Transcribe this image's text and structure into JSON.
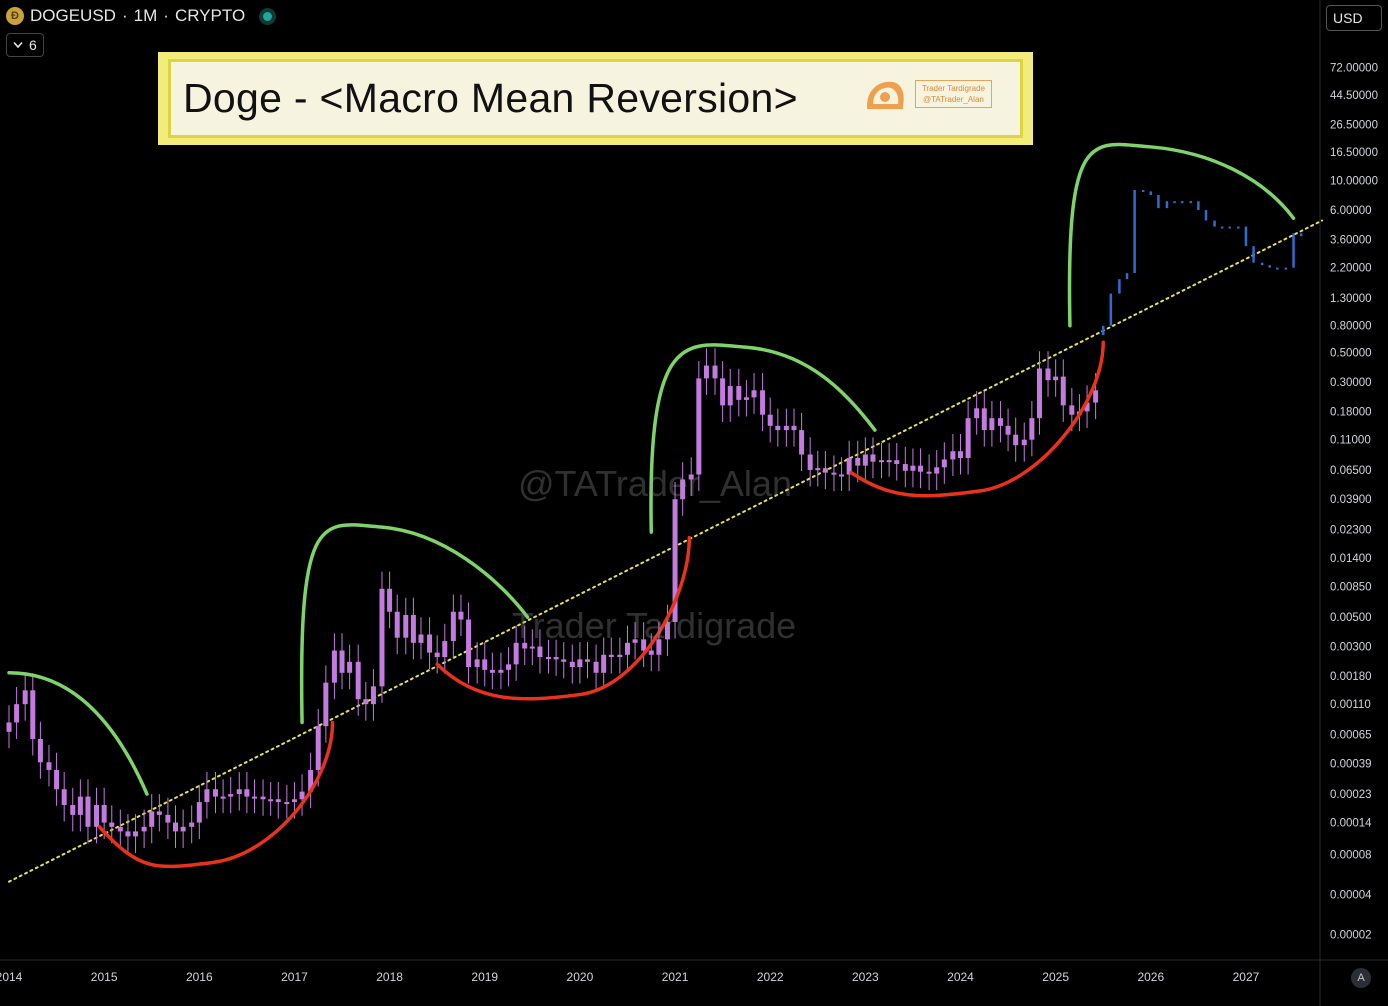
{
  "header": {
    "symbol": "DOGEUSD",
    "separator1": "·",
    "interval": "1M",
    "separator2": "·",
    "market": "CRYPTO",
    "indicator_count": "6"
  },
  "title": "Doge - <Macro Mean Reversion>",
  "logo": {
    "line1": "Trader Tardigrade",
    "line2": "@TATrader_Alan"
  },
  "watermarks": {
    "handle": "@TATrader_Alan",
    "brand": "Trader Tardigrade"
  },
  "currency_label": "USD",
  "auto_label": "A",
  "colors": {
    "candle": "#c47be0",
    "projection": "#2f6bd1",
    "green_arc": "#7fd36b",
    "red_arc": "#e8321e",
    "trend_line": "#e6e05a",
    "title_bg": "#f2ec7a"
  },
  "chart_data": {
    "type": "candlestick",
    "scale": "log",
    "y_ticks": [
      "72.00000",
      "44.50000",
      "26.50000",
      "16.50000",
      "10.00000",
      "6.00000",
      "3.60000",
      "2.20000",
      "1.30000",
      "0.80000",
      "0.50000",
      "0.30000",
      "0.18000",
      "0.11000",
      "0.06500",
      "0.03900",
      "0.02300",
      "0.01400",
      "0.00850",
      "0.00500",
      "0.00300",
      "0.00180",
      "0.00110",
      "0.00065",
      "0.00039",
      "0.00023",
      "0.00014",
      "0.00008",
      "0.00004",
      "0.00002"
    ],
    "x_ticks": [
      "2014",
      "2015",
      "2016",
      "2017",
      "2018",
      "2019",
      "2020",
      "2021",
      "2022",
      "2023",
      "2024",
      "2025",
      "2026",
      "2027"
    ],
    "xlim": [
      2014.0,
      2027.8
    ],
    "ylim": [
      1.6e-05,
      95
    ],
    "trend_line": {
      "from": [
        2014.0,
        5e-05
      ],
      "to": [
        2027.8,
        5.0
      ],
      "style": "dotted"
    },
    "series": [
      {
        "role": "historical",
        "color": "#c47be0",
        "close": [
          [
            2014.0,
            0.0008
          ],
          [
            2014.08,
            0.0011
          ],
          [
            2014.17,
            0.0014
          ],
          [
            2014.25,
            0.0006
          ],
          [
            2014.33,
            0.0004
          ],
          [
            2014.42,
            0.00035
          ],
          [
            2014.5,
            0.00025
          ],
          [
            2014.58,
            0.00019
          ],
          [
            2014.67,
            0.00016
          ],
          [
            2014.75,
            0.00022
          ],
          [
            2014.83,
            0.00013
          ],
          [
            2014.92,
            0.00019
          ],
          [
            2015.0,
            0.00014
          ],
          [
            2015.08,
            0.00013
          ],
          [
            2015.17,
            0.00012
          ],
          [
            2015.25,
            0.00011
          ],
          [
            2015.33,
            0.00012
          ],
          [
            2015.42,
            0.00013
          ],
          [
            2015.5,
            0.00017
          ],
          [
            2015.58,
            0.00016
          ],
          [
            2015.67,
            0.00014
          ],
          [
            2015.75,
            0.00012
          ],
          [
            2015.83,
            0.00013
          ],
          [
            2015.92,
            0.00014
          ],
          [
            2016.0,
            0.0002
          ],
          [
            2016.08,
            0.00025
          ],
          [
            2016.17,
            0.00022
          ],
          [
            2016.25,
            0.00022
          ],
          [
            2016.33,
            0.00023
          ],
          [
            2016.42,
            0.00025
          ],
          [
            2016.5,
            0.00022
          ],
          [
            2016.58,
            0.00022
          ],
          [
            2016.67,
            0.00021
          ],
          [
            2016.75,
            0.00021
          ],
          [
            2016.83,
            0.0002
          ],
          [
            2016.92,
            0.0002
          ],
          [
            2017.0,
            0.00021
          ],
          [
            2017.08,
            0.00024
          ],
          [
            2017.17,
            0.00035
          ],
          [
            2017.25,
            0.00075
          ],
          [
            2017.33,
            0.0016
          ],
          [
            2017.42,
            0.0028
          ],
          [
            2017.5,
            0.0019
          ],
          [
            2017.58,
            0.0023
          ],
          [
            2017.67,
            0.0012
          ],
          [
            2017.75,
            0.0011
          ],
          [
            2017.83,
            0.0015
          ],
          [
            2017.92,
            0.0082
          ],
          [
            2018.0,
            0.0055
          ],
          [
            2018.08,
            0.0035
          ],
          [
            2018.17,
            0.0052
          ],
          [
            2018.25,
            0.0032
          ],
          [
            2018.33,
            0.0037
          ],
          [
            2018.42,
            0.0027
          ],
          [
            2018.5,
            0.0025
          ],
          [
            2018.58,
            0.0033
          ],
          [
            2018.67,
            0.0055
          ],
          [
            2018.75,
            0.0048
          ],
          [
            2018.83,
            0.0021
          ],
          [
            2018.92,
            0.0024
          ],
          [
            2019.0,
            0.002
          ],
          [
            2019.08,
            0.0019
          ],
          [
            2019.17,
            0.002
          ],
          [
            2019.25,
            0.0022
          ],
          [
            2019.33,
            0.0032
          ],
          [
            2019.42,
            0.0029
          ],
          [
            2019.5,
            0.003
          ],
          [
            2019.58,
            0.0025
          ],
          [
            2019.67,
            0.0025
          ],
          [
            2019.75,
            0.0024
          ],
          [
            2019.83,
            0.0023
          ],
          [
            2019.92,
            0.0021
          ],
          [
            2020.0,
            0.0024
          ],
          [
            2020.08,
            0.0023
          ],
          [
            2020.17,
            0.0019
          ],
          [
            2020.25,
            0.0026
          ],
          [
            2020.33,
            0.0025
          ],
          [
            2020.42,
            0.0026
          ],
          [
            2020.5,
            0.0032
          ],
          [
            2020.58,
            0.0034
          ],
          [
            2020.67,
            0.0028
          ],
          [
            2020.75,
            0.0026
          ],
          [
            2020.83,
            0.0034
          ],
          [
            2020.92,
            0.0046
          ],
          [
            2021.0,
            0.039
          ],
          [
            2021.08,
            0.055
          ],
          [
            2021.17,
            0.06
          ],
          [
            2021.25,
            0.32
          ],
          [
            2021.33,
            0.4
          ],
          [
            2021.42,
            0.32
          ],
          [
            2021.5,
            0.2
          ],
          [
            2021.58,
            0.28
          ],
          [
            2021.67,
            0.22
          ],
          [
            2021.75,
            0.23
          ],
          [
            2021.83,
            0.26
          ],
          [
            2021.92,
            0.17
          ],
          [
            2022.0,
            0.14
          ],
          [
            2022.08,
            0.13
          ],
          [
            2022.17,
            0.14
          ],
          [
            2022.25,
            0.13
          ],
          [
            2022.33,
            0.085
          ],
          [
            2022.42,
            0.065
          ],
          [
            2022.5,
            0.067
          ],
          [
            2022.58,
            0.062
          ],
          [
            2022.67,
            0.06
          ],
          [
            2022.75,
            0.06
          ],
          [
            2022.83,
            0.08
          ],
          [
            2022.92,
            0.07
          ],
          [
            2023.0,
            0.085
          ],
          [
            2023.08,
            0.075
          ],
          [
            2023.17,
            0.077
          ],
          [
            2023.25,
            0.077
          ],
          [
            2023.33,
            0.072
          ],
          [
            2023.42,
            0.064
          ],
          [
            2023.5,
            0.07
          ],
          [
            2023.58,
            0.063
          ],
          [
            2023.67,
            0.061
          ],
          [
            2023.75,
            0.068
          ],
          [
            2023.83,
            0.078
          ],
          [
            2023.92,
            0.09
          ],
          [
            2024.0,
            0.08
          ],
          [
            2024.08,
            0.16
          ],
          [
            2024.17,
            0.19
          ],
          [
            2024.25,
            0.13
          ],
          [
            2024.33,
            0.16
          ],
          [
            2024.42,
            0.14
          ],
          [
            2024.5,
            0.12
          ],
          [
            2024.58,
            0.1
          ],
          [
            2024.67,
            0.11
          ],
          [
            2024.75,
            0.16
          ],
          [
            2024.83,
            0.38
          ],
          [
            2024.92,
            0.31
          ],
          [
            2025.0,
            0.33
          ],
          [
            2025.08,
            0.2
          ],
          [
            2025.17,
            0.17
          ],
          [
            2025.25,
            0.18
          ],
          [
            2025.33,
            0.21
          ],
          [
            2025.42,
            0.26
          ]
        ]
      },
      {
        "role": "projection",
        "color": "#2f6bd1",
        "close": [
          [
            2025.5,
            0.8
          ],
          [
            2025.58,
            1.4
          ],
          [
            2025.67,
            1.8
          ],
          [
            2025.75,
            2.0
          ],
          [
            2025.83,
            8.5
          ],
          [
            2025.92,
            8.3
          ],
          [
            2026.0,
            7.8
          ],
          [
            2026.08,
            6.2
          ],
          [
            2026.17,
            7.0
          ],
          [
            2026.25,
            7.0
          ],
          [
            2026.33,
            7.0
          ],
          [
            2026.42,
            7.0
          ],
          [
            2026.5,
            6.0
          ],
          [
            2026.58,
            5.0
          ],
          [
            2026.67,
            4.5
          ],
          [
            2026.75,
            4.5
          ],
          [
            2026.83,
            4.5
          ],
          [
            2026.92,
            4.5
          ],
          [
            2027.0,
            3.2
          ],
          [
            2027.08,
            2.4
          ],
          [
            2027.17,
            2.3
          ],
          [
            2027.25,
            2.2
          ],
          [
            2027.33,
            2.2
          ],
          [
            2027.42,
            2.2
          ],
          [
            2027.5,
            4.0
          ],
          [
            2027.58,
            3.8
          ]
        ]
      }
    ],
    "cycle_tops": [
      {
        "from": [
          2014.0,
          0.0019
        ],
        "peak": [
          2014.0,
          0.0019
        ],
        "to": [
          2015.45,
          0.00023
        ]
      },
      {
        "from": [
          2017.08,
          0.0008
        ],
        "peak": [
          2017.92,
          0.024
        ],
        "to": [
          2019.45,
          0.005
        ]
      },
      {
        "from": [
          2020.75,
          0.022
        ],
        "peak": [
          2021.75,
          0.55
        ],
        "to": [
          2023.1,
          0.13
        ]
      },
      {
        "from": [
          2025.15,
          0.8
        ],
        "peak": [
          2026.0,
          18
        ],
        "to": [
          2027.5,
          5.2
        ]
      }
    ],
    "cycle_bottoms": [
      {
        "from": [
          2014.95,
          0.00013
        ],
        "low": [
          2016.15,
          7e-05
        ],
        "to": [
          2017.4,
          0.0008
        ]
      },
      {
        "from": [
          2018.5,
          0.0022
        ],
        "low": [
          2020.0,
          0.0013
        ],
        "to": [
          2021.15,
          0.02
        ]
      },
      {
        "from": [
          2022.85,
          0.062
        ],
        "low": [
          2024.2,
          0.045
        ],
        "to": [
          2025.5,
          0.6
        ]
      }
    ]
  }
}
